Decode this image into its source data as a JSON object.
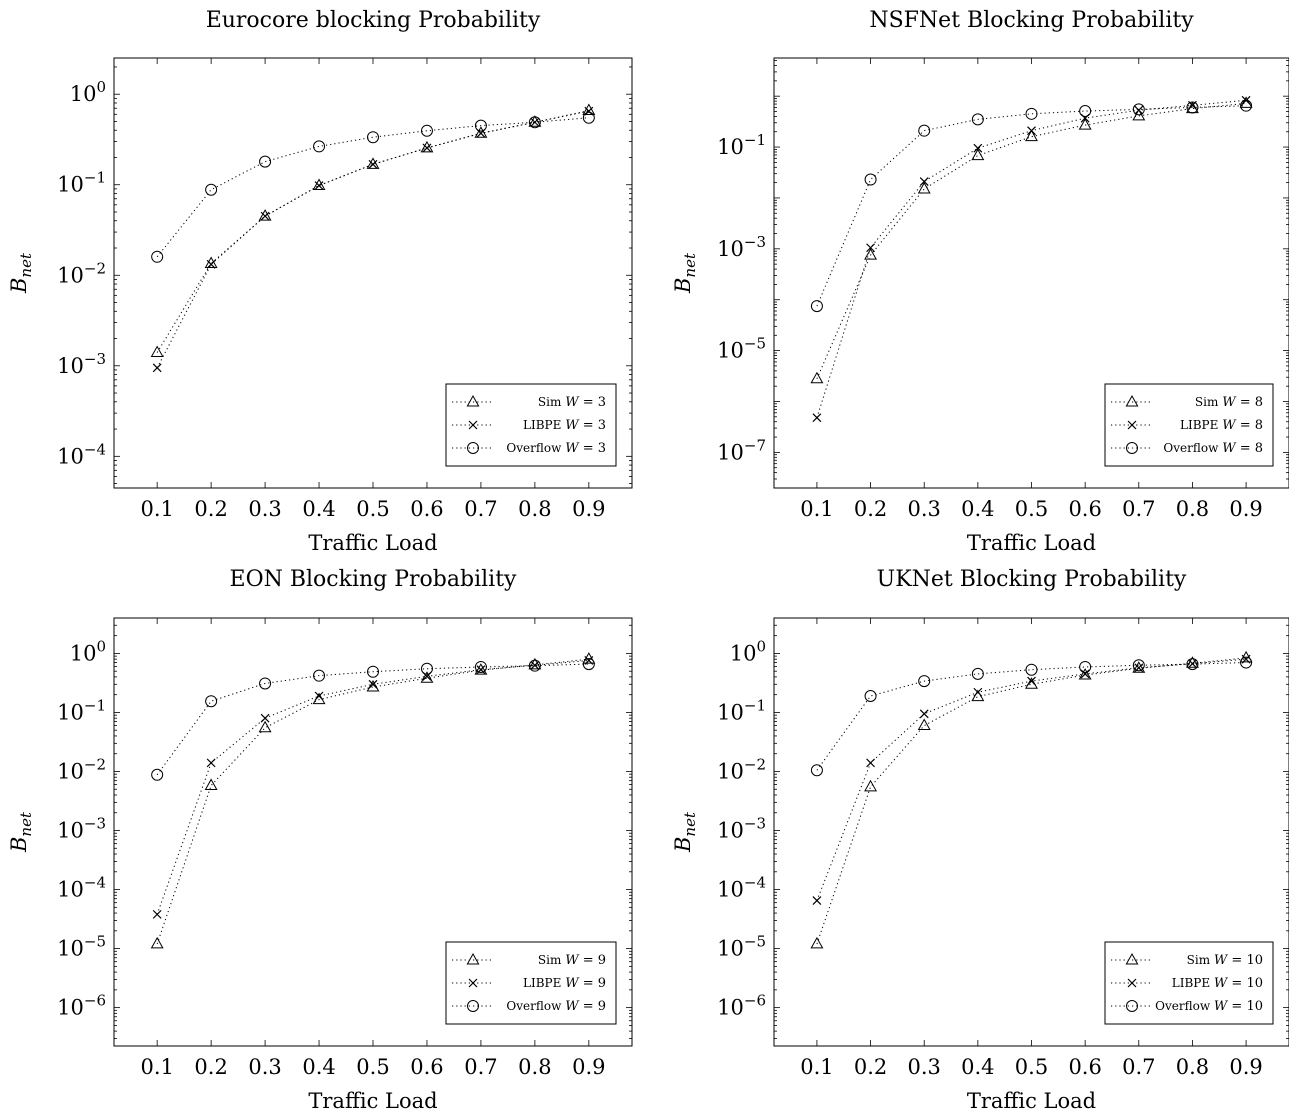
{
  "chart_data": [
    {
      "type": "line",
      "title": "Eurocore blocking Probability",
      "xlabel": "Traffic Load",
      "ylabel": {
        "base": "B",
        "sub": "net"
      },
      "yscale": "log",
      "ylim_exp": [
        -4.35,
        0.4
      ],
      "ytick_exps": [
        -4,
        -3,
        -2,
        -1,
        0
      ],
      "x": [
        0.1,
        0.2,
        0.3,
        0.4,
        0.5,
        0.6,
        0.7,
        0.8,
        0.9
      ],
      "xtick_labels": [
        "0.1",
        "0.2",
        "0.3",
        "0.4",
        "0.5",
        "0.6",
        "0.7",
        "0.8",
        "0.9"
      ],
      "legend_position": "bottom-right",
      "series": [
        {
          "name": "Sim",
          "wvar": "W",
          "wval": "= 3",
          "marker": "triangle",
          "values": [
            0.0014,
            0.0135,
            0.045,
            0.098,
            0.168,
            0.255,
            0.37,
            0.49,
            0.66
          ]
        },
        {
          "name": "LIBPE",
          "wvar": "W",
          "wval": "= 3",
          "marker": "cross",
          "values": [
            0.00095,
            0.0132,
            0.045,
            0.098,
            0.168,
            0.255,
            0.37,
            0.49,
            0.65
          ]
        },
        {
          "name": "Overflow",
          "wvar": "W",
          "wval": "= 3",
          "marker": "circle",
          "values": [
            0.016,
            0.088,
            0.18,
            0.265,
            0.335,
            0.395,
            0.45,
            0.49,
            0.55
          ]
        }
      ]
    },
    {
      "type": "line",
      "title": "NSFNet Blocking Probability",
      "xlabel": "Traffic Load",
      "ylabel": {
        "base": "B",
        "sub": "net"
      },
      "yscale": "log",
      "ylim_exp": [
        -7.7,
        0.75
      ],
      "ytick_exps": [
        -7,
        -5,
        -3,
        -1
      ],
      "x": [
        0.1,
        0.2,
        0.3,
        0.4,
        0.5,
        0.6,
        0.7,
        0.8,
        0.9
      ],
      "xtick_labels": [
        "0.1",
        "0.2",
        "0.3",
        "0.4",
        "0.5",
        "0.6",
        "0.7",
        "0.8",
        "0.9"
      ],
      "legend_position": "bottom-right",
      "series": [
        {
          "name": "Sim",
          "wvar": "W",
          "wval": "= 8",
          "marker": "triangle",
          "values": [
            2.8e-06,
            0.00075,
            0.015,
            0.068,
            0.16,
            0.27,
            0.41,
            0.57,
            0.72
          ]
        },
        {
          "name": "LIBPE",
          "wvar": "W",
          "wval": "= 8",
          "marker": "cross",
          "values": [
            4.8e-07,
            0.00105,
            0.021,
            0.095,
            0.21,
            0.37,
            0.53,
            0.66,
            0.83
          ]
        },
        {
          "name": "Overflow",
          "wvar": "W",
          "wval": "= 8",
          "marker": "circle",
          "values": [
            7.5e-05,
            0.023,
            0.21,
            0.35,
            0.45,
            0.51,
            0.55,
            0.6,
            0.65
          ]
        }
      ]
    },
    {
      "type": "line",
      "title": "EON Blocking Probability",
      "xlabel": "Traffic Load",
      "ylabel": {
        "base": "B",
        "sub": "net"
      },
      "yscale": "log",
      "ylim_exp": [
        -6.65,
        0.6
      ],
      "ytick_exps": [
        -6,
        -5,
        -4,
        -3,
        -2,
        -1,
        0
      ],
      "x": [
        0.1,
        0.2,
        0.3,
        0.4,
        0.5,
        0.6,
        0.7,
        0.8,
        0.9
      ],
      "xtick_labels": [
        "0.1",
        "0.2",
        "0.3",
        "0.4",
        "0.5",
        "0.6",
        "0.7",
        "0.8",
        "0.9"
      ],
      "legend_position": "bottom-right",
      "series": [
        {
          "name": "Sim",
          "wvar": "W",
          "wval": "= 9",
          "marker": "triangle",
          "values": [
            1.2e-05,
            0.0058,
            0.055,
            0.165,
            0.27,
            0.38,
            0.52,
            0.64,
            0.8
          ]
        },
        {
          "name": "LIBPE",
          "wvar": "W",
          "wval": "= 9",
          "marker": "cross",
          "values": [
            3.8e-05,
            0.014,
            0.08,
            0.19,
            0.3,
            0.41,
            0.53,
            0.63,
            0.76
          ]
        },
        {
          "name": "Overflow",
          "wvar": "W",
          "wval": "= 9",
          "marker": "circle",
          "values": [
            0.0088,
            0.155,
            0.31,
            0.42,
            0.49,
            0.55,
            0.59,
            0.62,
            0.66
          ]
        }
      ]
    },
    {
      "type": "line",
      "title": "UKNet Blocking Probability",
      "xlabel": "Traffic Load",
      "ylabel": {
        "base": "B",
        "sub": "net"
      },
      "yscale": "log",
      "ylim_exp": [
        -6.65,
        0.6
      ],
      "ytick_exps": [
        -6,
        -5,
        -4,
        -3,
        -2,
        -1,
        0
      ],
      "x": [
        0.1,
        0.2,
        0.3,
        0.4,
        0.5,
        0.6,
        0.7,
        0.8,
        0.9
      ],
      "xtick_labels": [
        "0.1",
        "0.2",
        "0.3",
        "0.4",
        "0.5",
        "0.6",
        "0.7",
        "0.8",
        "0.9"
      ],
      "legend_position": "bottom-right",
      "series": [
        {
          "name": "Sim",
          "wvar": "W",
          "wval": "= 10",
          "marker": "triangle",
          "values": [
            1.2e-05,
            0.0055,
            0.06,
            0.185,
            0.3,
            0.43,
            0.56,
            0.68,
            0.84
          ]
        },
        {
          "name": "LIBPE",
          "wvar": "W",
          "wval": "= 10",
          "marker": "cross",
          "values": [
            6.5e-05,
            0.014,
            0.095,
            0.22,
            0.34,
            0.45,
            0.57,
            0.67,
            0.8
          ]
        },
        {
          "name": "Overflow",
          "wvar": "W",
          "wval": "= 10",
          "marker": "circle",
          "values": [
            0.0105,
            0.19,
            0.34,
            0.45,
            0.53,
            0.59,
            0.63,
            0.66,
            0.7
          ]
        }
      ]
    }
  ]
}
